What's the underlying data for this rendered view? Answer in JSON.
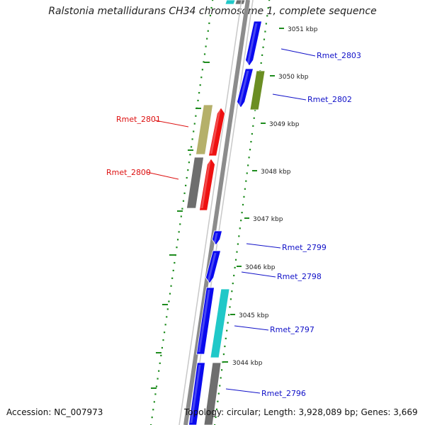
{
  "title": "Ralstonia metallidurans CH34 chromosome 1, complete sequence",
  "footer": {
    "accession": "Accession: NC_007973",
    "stats": "Topology: circular; Length: 3,928,089 bp; Genes: 3,669"
  },
  "ruler": [
    "3051 kbp",
    "3050 kbp",
    "3049 kbp",
    "3048 kbp",
    "3047 kbp",
    "3046 kbp",
    "3045 kbp",
    "3044 kbp"
  ],
  "genes": [
    {
      "label": "Rmet_2803",
      "strand": "reverse",
      "color": "#0a0aee"
    },
    {
      "label": "Rmet_2802",
      "strand": "reverse",
      "color": "#0a0aee"
    },
    {
      "label": "Rmet_2801",
      "strand": "forward",
      "color": "#ee1111"
    },
    {
      "label": "Rmet_2800",
      "strand": "forward",
      "color": "#ee1111"
    },
    {
      "label": "Rmet_2799",
      "strand": "reverse",
      "color": "#0a0aee"
    },
    {
      "label": "Rmet_2798",
      "strand": "reverse",
      "color": "#0a0aee"
    },
    {
      "label": "Rmet_2797",
      "strand": "reverse",
      "color": "#0a0aee"
    },
    {
      "label": "Rmet_2796",
      "strand": "reverse",
      "color": "#0a0aee"
    }
  ],
  "colors": {
    "backbone": "#8c8c8c",
    "tick": "#1e8c1e",
    "blue": "#0a0aee",
    "red": "#ee1111",
    "olive": "#6b8e23",
    "tan": "#b5b06a",
    "gray": "#6e6e6e",
    "cyan": "#20c8c8",
    "blue_label": "#1010c8",
    "red_label": "#dd1010"
  }
}
